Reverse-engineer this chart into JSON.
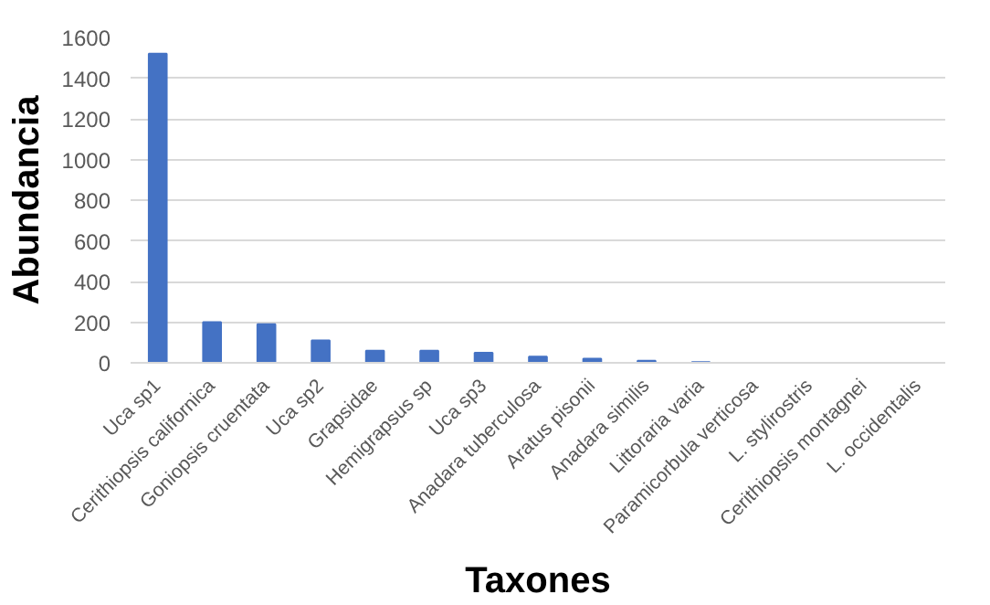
{
  "chart_data": {
    "type": "bar",
    "xlabel": "Taxones",
    "ylabel": "Abundancia",
    "categories": [
      "Uca sp1",
      "Cerithiopsis californica",
      "Goniopsis cruentata",
      "Uca sp2",
      "Grapsidae",
      "Hemigrapsus sp",
      "Uca sp3",
      "Anadara tuberculosa",
      "Aratus pisonii",
      "Anadara similis",
      "Littoraria varia",
      "Paramicorbula verticosa",
      "L. stylirostris",
      "Cerithiopsis montagnei",
      "L. occidentalis"
    ],
    "values": [
      1520,
      200,
      190,
      110,
      60,
      60,
      50,
      30,
      20,
      10,
      3,
      null,
      null,
      null,
      null
    ],
    "color": "#4472c4",
    "ylim": [
      0,
      1600
    ],
    "yticks": [
      0,
      200,
      400,
      600,
      800,
      1000,
      1200,
      1400,
      1600
    ],
    "grid": "y"
  }
}
